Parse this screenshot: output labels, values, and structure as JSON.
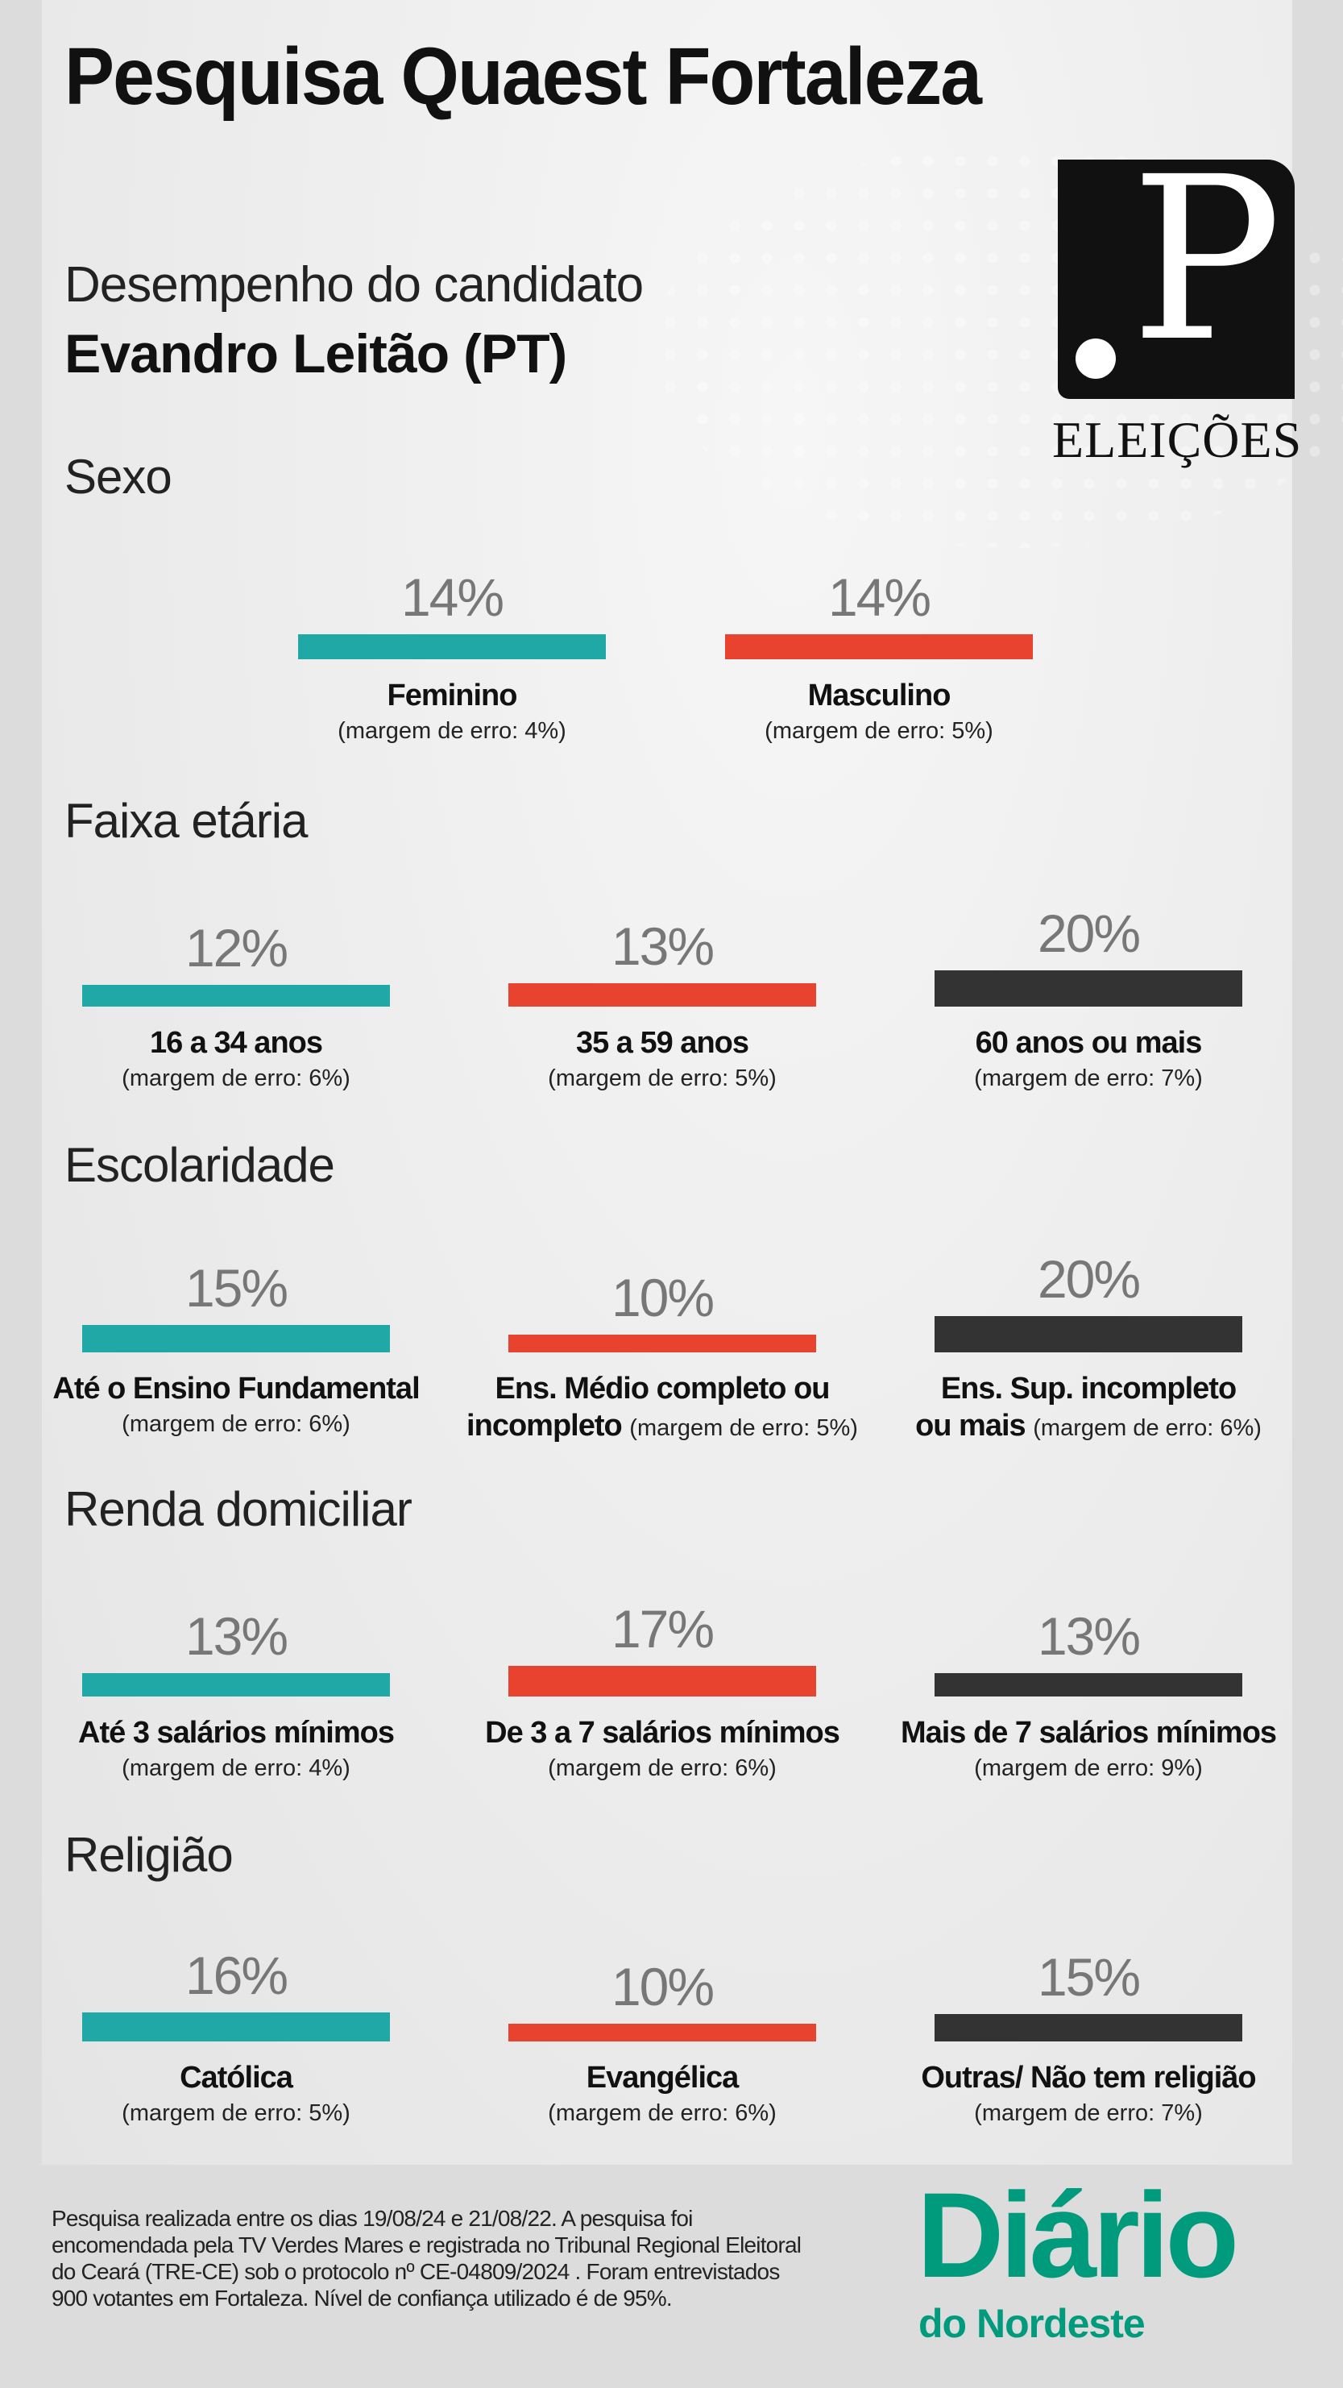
{
  "title": "Pesquisa Quaest Fortaleza",
  "subtitle": "Desempenho do candidato",
  "candidate": "Evandro Leitão (PT)",
  "logo": {
    "letter": "P",
    "label": "ELEIÇÕES"
  },
  "colors": {
    "teal": "#1fa8a6",
    "red": "#e8432f",
    "dark": "#333333",
    "brand": "#009b7d"
  },
  "sections": [
    {
      "heading": "Sexo",
      "items": [
        {
          "value": 14,
          "pct": "14%",
          "label": "Feminino",
          "margin": "(margem de erro: 4%)",
          "color": "teal"
        },
        {
          "value": 14,
          "pct": "14%",
          "label": "Masculino",
          "margin": "(margem de erro: 5%)",
          "color": "red"
        }
      ]
    },
    {
      "heading": "Faixa etária",
      "items": [
        {
          "value": 12,
          "pct": "12%",
          "label": "16 a 34 anos",
          "margin": "(margem de erro: 6%)",
          "color": "teal"
        },
        {
          "value": 13,
          "pct": "13%",
          "label": "35 a 59 anos",
          "margin": "(margem de erro: 5%)",
          "color": "red"
        },
        {
          "value": 20,
          "pct": "20%",
          "label": "60 anos ou mais",
          "margin": "(margem de erro: 7%)",
          "color": "dark"
        }
      ]
    },
    {
      "heading": "Escolaridade",
      "items": [
        {
          "value": 15,
          "pct": "15%",
          "label": "Até o Ensino Fundamental",
          "margin": "(margem de erro: 6%)",
          "color": "teal"
        },
        {
          "value": 10,
          "pct": "10%",
          "label": "Ens. Médio completo ou",
          "label2": "incompleto",
          "margin": "(margem de erro: 5%)",
          "color": "red"
        },
        {
          "value": 20,
          "pct": "20%",
          "label": "Ens. Sup. incompleto",
          "label2": "ou mais",
          "margin": "(margem de erro: 6%)",
          "color": "dark"
        }
      ]
    },
    {
      "heading": "Renda domiciliar",
      "items": [
        {
          "value": 13,
          "pct": "13%",
          "label": "Até 3 salários mínimos",
          "margin": "(margem de erro: 4%)",
          "color": "teal"
        },
        {
          "value": 17,
          "pct": "17%",
          "label": "De 3 a 7 salários mínimos",
          "margin": "(margem de erro: 6%)",
          "color": "red"
        },
        {
          "value": 13,
          "pct": "13%",
          "label": "Mais de 7 salários mínimos",
          "margin": "(margem de erro: 9%)",
          "color": "dark"
        }
      ]
    },
    {
      "heading": "Religião",
      "items": [
        {
          "value": 16,
          "pct": "16%",
          "label": "Católica",
          "margin": "(margem de erro: 5%)",
          "color": "teal"
        },
        {
          "value": 10,
          "pct": "10%",
          "label": "Evangélica",
          "margin": "(margem de erro: 6%)",
          "color": "red"
        },
        {
          "value": 15,
          "pct": "15%",
          "label": "Outras/ Não tem religião",
          "margin": "(margem de erro: 7%)",
          "color": "dark"
        }
      ]
    }
  ],
  "footer": {
    "lines": [
      "Pesquisa realizada entre os dias 19/08/24 e  21/08/22. A pesquisa foi",
      "encomendada pela TV Verdes Mares e registrada no Tribunal Regional Eleitoral",
      "do Ceará (TRE-CE) sob o protocolo nº CE-04809/2024 . Foram entrevistados",
      "900 votantes em Fortaleza. Nível de confiança utilizado é de 95%."
    ]
  },
  "brand": {
    "line1": "Diário",
    "line2": "do Nordeste"
  }
}
